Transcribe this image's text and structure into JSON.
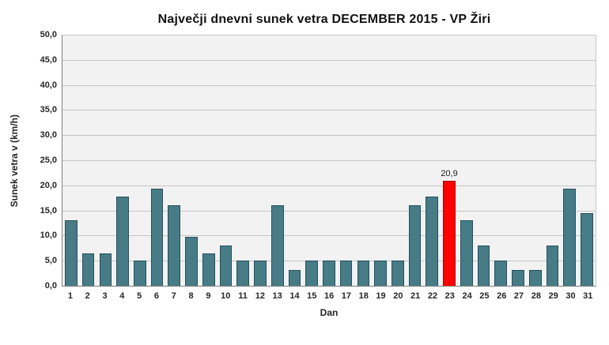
{
  "chart_data": {
    "type": "bar",
    "title": "Največji dnevni sunek vetra DECEMBER 2015 - VP Žiri",
    "xlabel": "Dan",
    "ylabel": "Sunek vetra v (km/h)",
    "ylim": [
      0,
      50
    ],
    "y_tick_step": 5,
    "y_tick_labels": [
      "0,0",
      "5,0",
      "10,0",
      "15,0",
      "20,0",
      "25,0",
      "30,0",
      "35,0",
      "40,0",
      "45,0",
      "50,0"
    ],
    "categories": [
      "1",
      "2",
      "3",
      "4",
      "5",
      "6",
      "7",
      "8",
      "9",
      "10",
      "11",
      "12",
      "13",
      "14",
      "15",
      "16",
      "17",
      "18",
      "19",
      "20",
      "21",
      "22",
      "23",
      "24",
      "25",
      "26",
      "27",
      "28",
      "29",
      "30",
      "31"
    ],
    "values": [
      13.0,
      6.5,
      6.5,
      17.7,
      5.0,
      19.4,
      16.1,
      9.7,
      6.5,
      8.0,
      5.0,
      5.0,
      16.1,
      3.2,
      5.0,
      5.0,
      5.0,
      5.0,
      5.0,
      5.0,
      16.1,
      17.7,
      20.9,
      13.0,
      8.0,
      5.0,
      3.2,
      3.2,
      8.0,
      19.4,
      14.5
    ],
    "highlight_index": 22,
    "highlight_label": "20,9",
    "bar_color": "#477C87",
    "bar_border": "#23505C",
    "highlight_color": "#FF0000",
    "highlight_border": "#B00000",
    "grid": true,
    "legend": false,
    "plot_background": "#F2F2F2",
    "gridline_color": "#C6C6C6",
    "axis_color": "#808080"
  }
}
